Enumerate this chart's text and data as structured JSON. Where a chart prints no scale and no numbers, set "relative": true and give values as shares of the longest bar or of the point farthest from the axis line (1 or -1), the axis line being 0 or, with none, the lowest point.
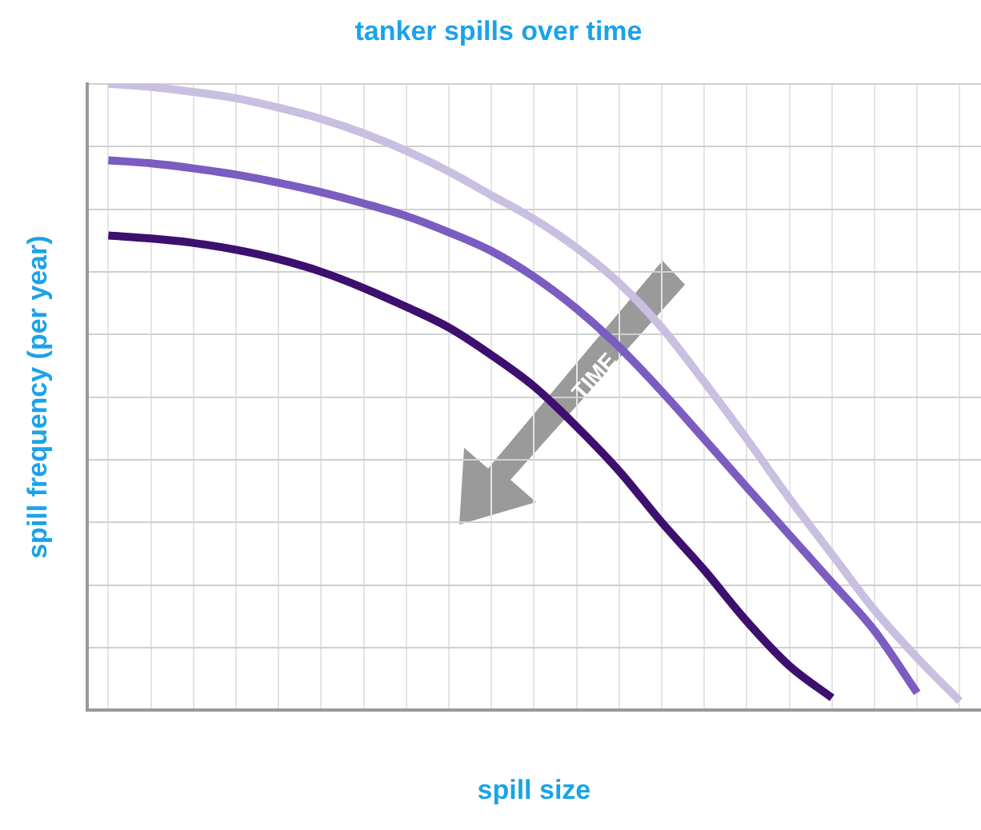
{
  "chart_data": {
    "type": "line",
    "title": "tanker spills over time",
    "xlabel": "spill size",
    "ylabel": "spill frequency (per year)",
    "relative": true,
    "grid": true,
    "legend": false,
    "marker": "none",
    "line_style": "solid",
    "categories": [
      null,
      null,
      null,
      null,
      null,
      null,
      null,
      null,
      null,
      null,
      null,
      null,
      null,
      null,
      null,
      null,
      null,
      null,
      null,
      null,
      null
    ],
    "series": [
      {
        "color": "#c9bfe0",
        "values": [
          1.0,
          0.995,
          0.987,
          0.977,
          0.962,
          0.944,
          0.921,
          0.893,
          0.86,
          0.822,
          0.784,
          0.738,
          0.682,
          0.611,
          0.524,
          0.433,
          0.338,
          0.249,
          0.16,
          0.084,
          0.015
        ]
      },
      {
        "color": "#7b5cc0",
        "values": [
          0.878,
          0.873,
          0.865,
          0.855,
          0.842,
          0.827,
          0.809,
          0.789,
          0.763,
          0.733,
          0.692,
          0.641,
          0.58,
          0.509,
          0.433,
          0.356,
          0.28,
          0.204,
          0.127,
          0.028,
          null
        ]
      },
      {
        "color": "#3d0f6e",
        "values": [
          0.758,
          0.753,
          0.746,
          0.735,
          0.72,
          0.7,
          0.674,
          0.644,
          0.611,
          0.567,
          0.517,
          0.453,
          0.382,
          0.3,
          0.224,
          0.142,
          0.071,
          0.02,
          null,
          null,
          null
        ]
      }
    ],
    "annotations": [
      "TIME"
    ]
  }
}
